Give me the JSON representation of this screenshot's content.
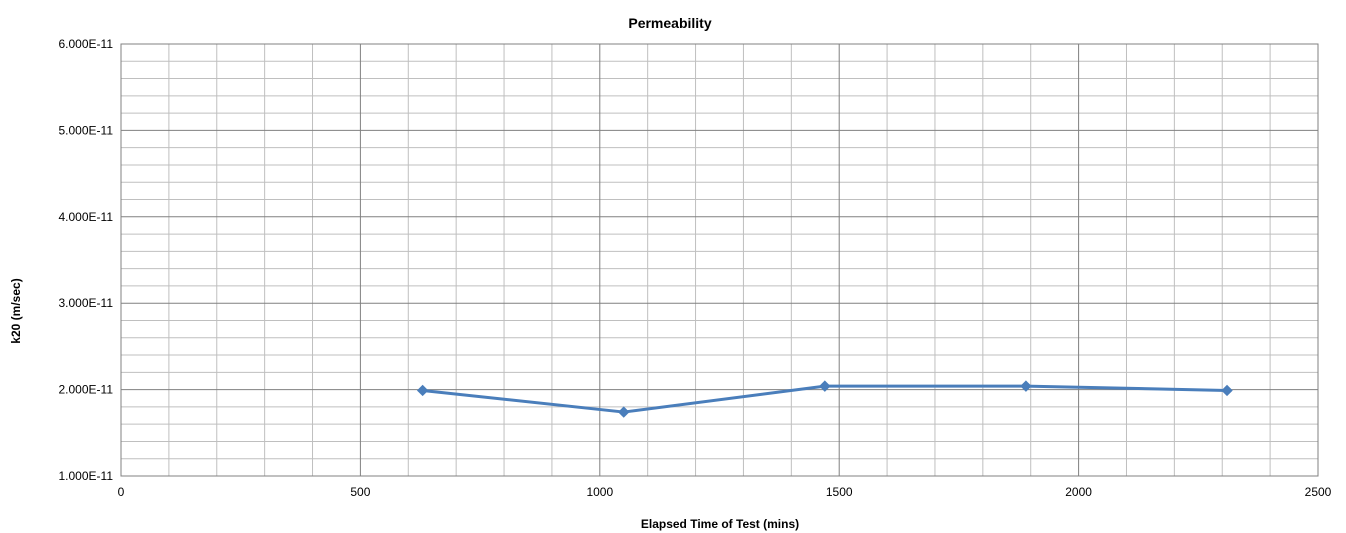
{
  "chart_data": {
    "type": "line",
    "title": "Permeability",
    "xlabel": "Elapsed Time of Test (mins)",
    "ylabel": "k20  (m/sec)",
    "xlim": [
      0,
      2500
    ],
    "ylim": [
      1e-11,
      6e-11
    ],
    "x_major_step": 500,
    "x_minor_step": 100,
    "y_major_step": 1e-11,
    "y_minor_step": 2e-12,
    "x_tick_labels": [
      "0",
      "500",
      "1000",
      "1500",
      "2000",
      "2500"
    ],
    "y_tick_labels": [
      "1.000E-11",
      "2.000E-11",
      "3.000E-11",
      "4.000E-11",
      "5.000E-11",
      "6.000E-11"
    ],
    "grid": true,
    "legend": "none",
    "series": [
      {
        "color": "#4a7ebb",
        "marker": "diamond",
        "x": [
          630,
          1050,
          1470,
          1890,
          2310
        ],
        "y": [
          1.99e-11,
          1.74e-11,
          2.04e-11,
          2.04e-11,
          1.99e-11
        ]
      }
    ],
    "colors": {
      "major_grid": "#808080",
      "minor_grid": "#bfbfbf",
      "axis": "#808080"
    }
  }
}
